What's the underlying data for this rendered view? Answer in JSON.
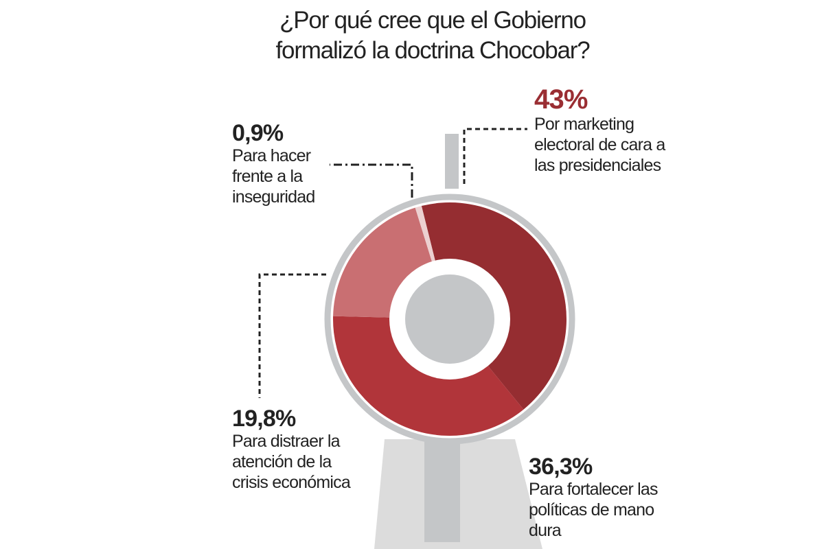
{
  "chart_data": {
    "type": "pie",
    "title": "¿Por qué cree que el Gobierno formalizó la doctrina Chocobar?",
    "categories": [
      "Por marketing electoral de cara a las presidenciales",
      "Para fortalecer las políticas de mano dura",
      "Para distraer la atención de la crisis económica",
      "Para hacer frente a la inseguridad"
    ],
    "values": [
      43,
      36.3,
      19.8,
      0.9
    ],
    "value_labels": [
      "43%",
      "36,3%",
      "19,8%",
      "0,9%"
    ],
    "colors": [
      "#952d31",
      "#b1353a",
      "#c96f72",
      "#ecd0d0"
    ]
  }
}
